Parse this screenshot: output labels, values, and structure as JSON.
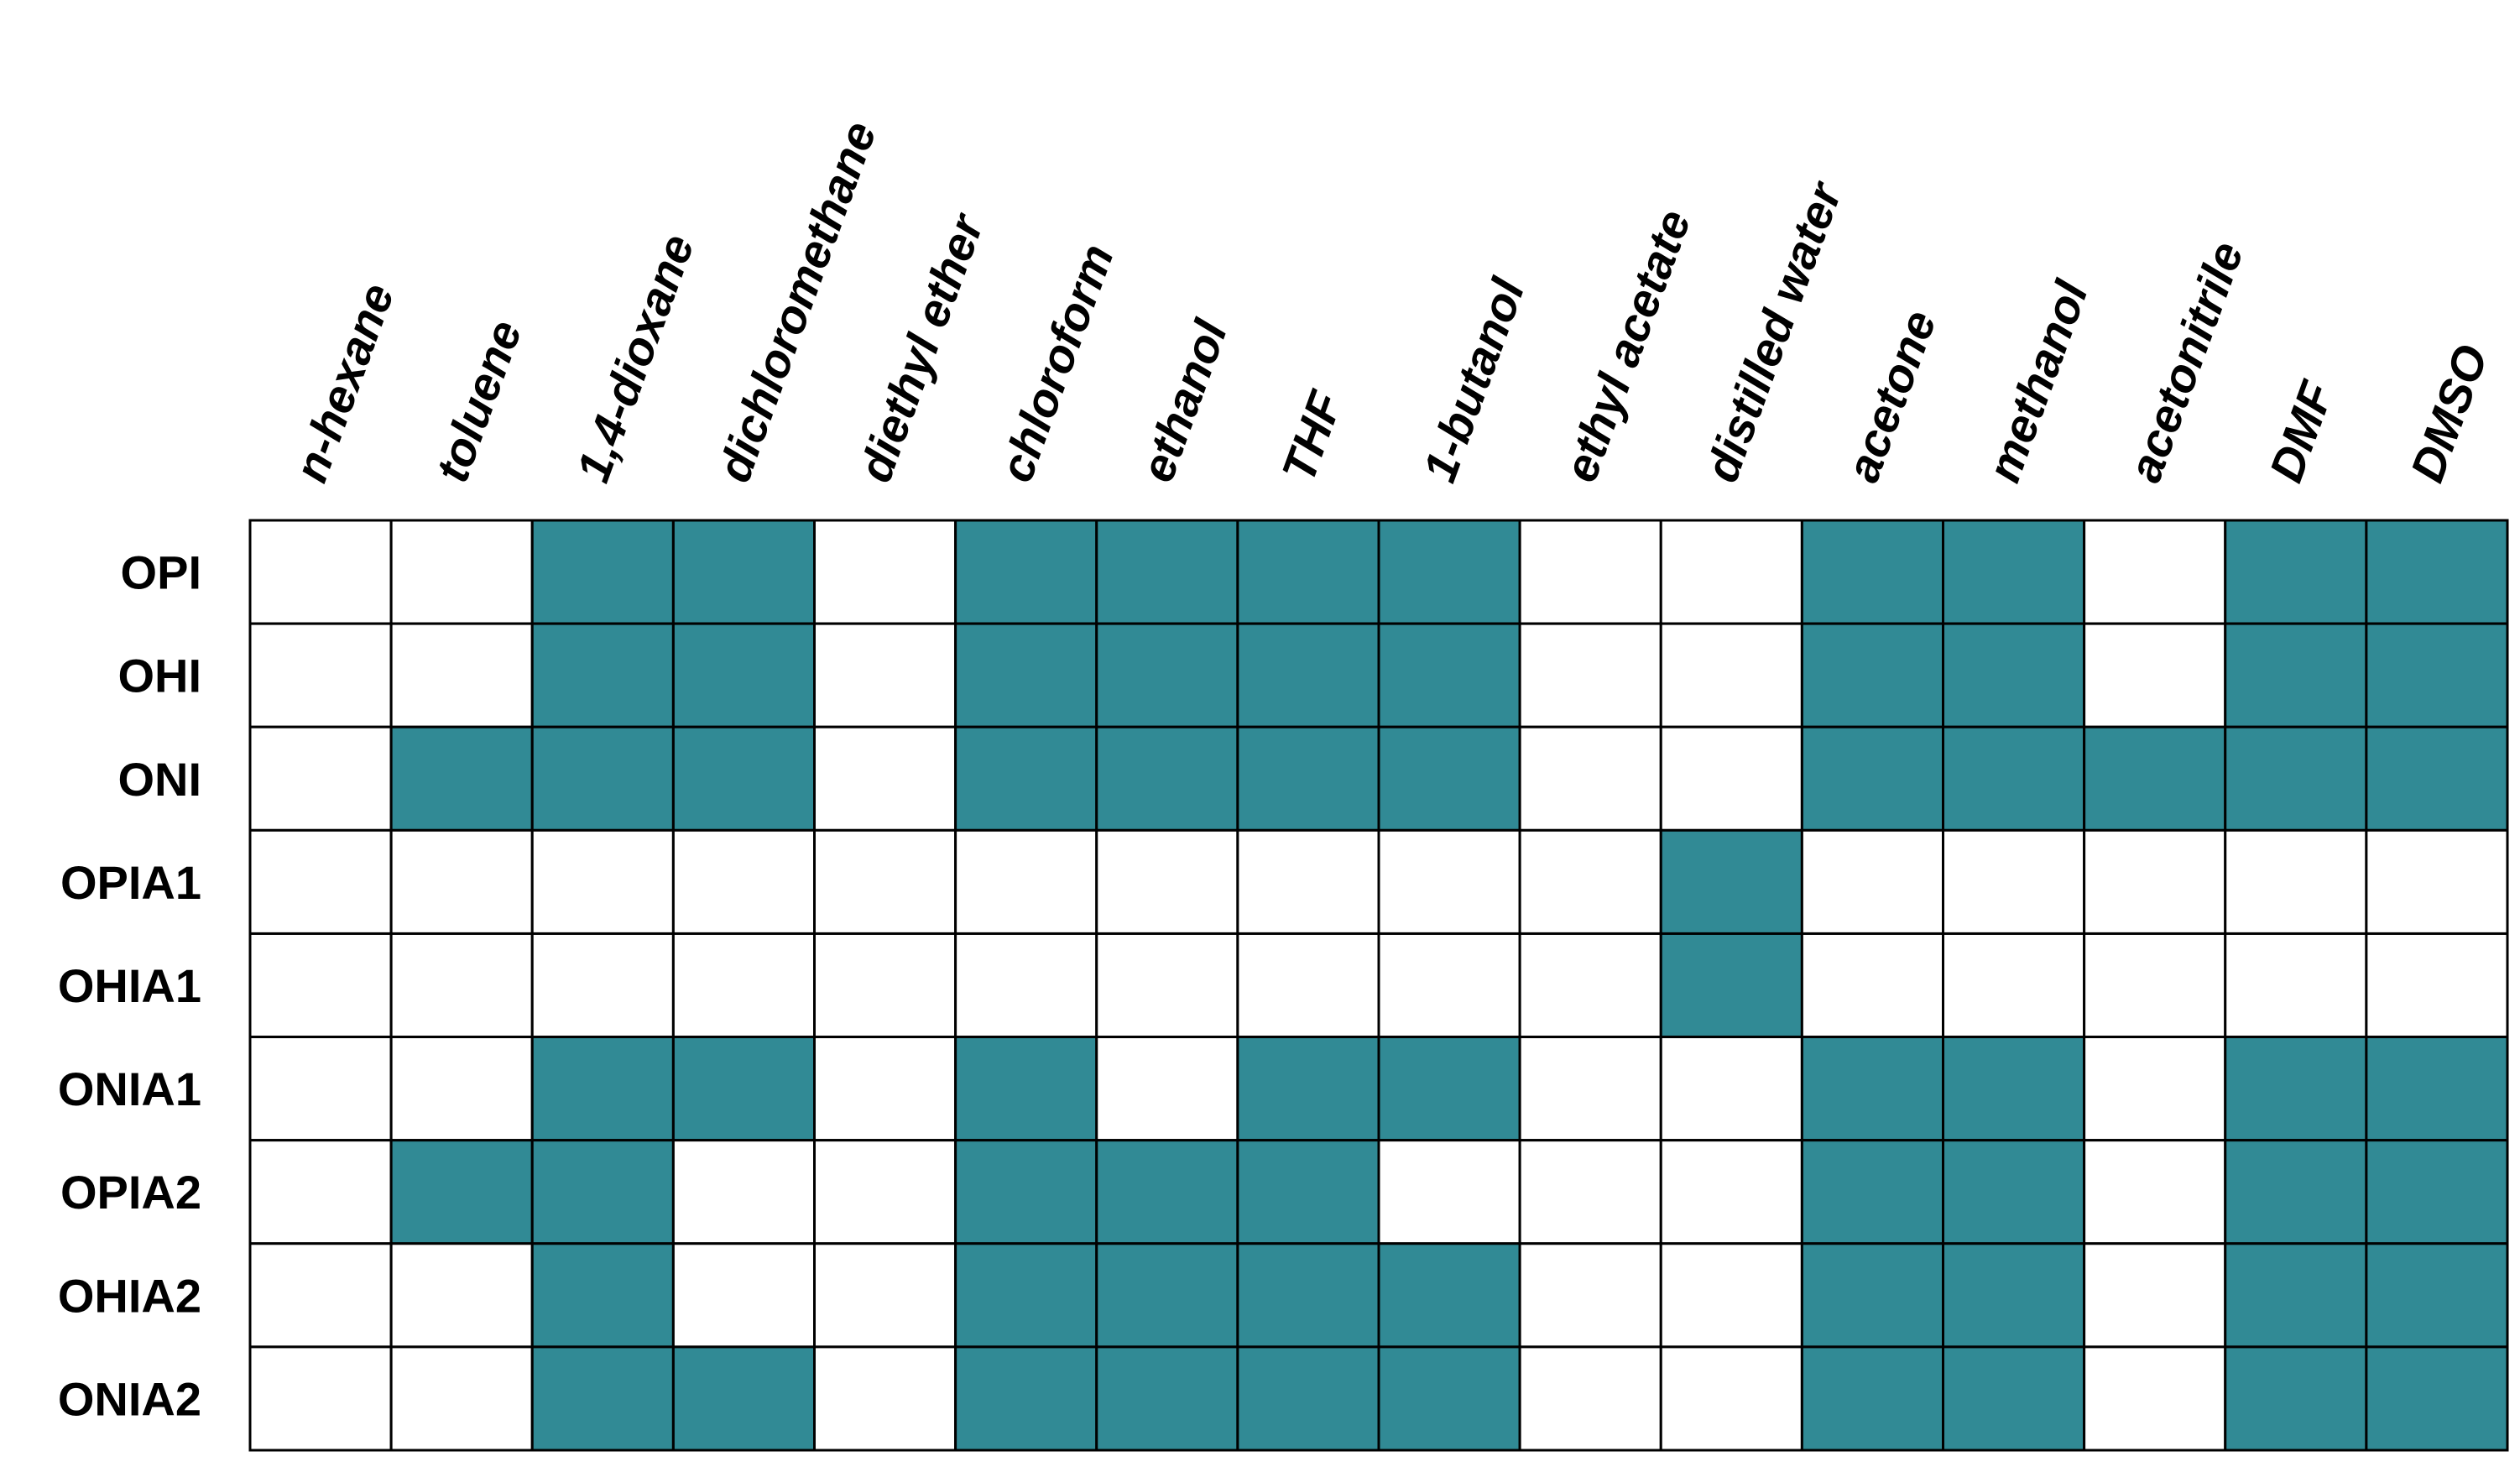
{
  "chart_data": {
    "type": "heatmap",
    "title": "",
    "xlabel": "",
    "ylabel": "",
    "legend": "none",
    "grid": true,
    "colors": {
      "filled": "#318a95",
      "empty": "#ffffff",
      "border": "#000000"
    },
    "columns": [
      "n-hexane",
      "toluene",
      "1,4-dioxane",
      "dichloromethane",
      "diethyl ether",
      "chloroform",
      "ethanol",
      "THF",
      "1-butanol",
      "ethyl acetate",
      "distilled water",
      "acetone",
      "methanol",
      "acetonitrile",
      "DMF",
      "DMSO"
    ],
    "rows": [
      "OPI",
      "OHI",
      "ONI",
      "OPIA1",
      "OHIA1",
      "ONIA1",
      "OPIA2",
      "OHIA2",
      "ONIA2"
    ],
    "values": [
      [
        0,
        0,
        1,
        1,
        0,
        1,
        1,
        1,
        1,
        0,
        0,
        1,
        1,
        0,
        1,
        1
      ],
      [
        0,
        0,
        1,
        1,
        0,
        1,
        1,
        1,
        1,
        0,
        0,
        1,
        1,
        0,
        1,
        1
      ],
      [
        0,
        1,
        1,
        1,
        0,
        1,
        1,
        1,
        1,
        0,
        0,
        1,
        1,
        1,
        1,
        1
      ],
      [
        0,
        0,
        0,
        0,
        0,
        0,
        0,
        0,
        0,
        0,
        1,
        0,
        0,
        0,
        0,
        0
      ],
      [
        0,
        0,
        0,
        0,
        0,
        0,
        0,
        0,
        0,
        0,
        1,
        0,
        0,
        0,
        0,
        0
      ],
      [
        0,
        0,
        1,
        1,
        0,
        1,
        0,
        1,
        1,
        0,
        0,
        1,
        1,
        0,
        1,
        1
      ],
      [
        0,
        1,
        1,
        0,
        0,
        1,
        1,
        1,
        0,
        0,
        0,
        1,
        1,
        0,
        1,
        1
      ],
      [
        0,
        0,
        1,
        0,
        0,
        1,
        1,
        1,
        1,
        0,
        0,
        1,
        1,
        0,
        1,
        1
      ],
      [
        0,
        0,
        1,
        1,
        0,
        1,
        1,
        1,
        1,
        0,
        0,
        1,
        1,
        0,
        1,
        1
      ]
    ]
  }
}
